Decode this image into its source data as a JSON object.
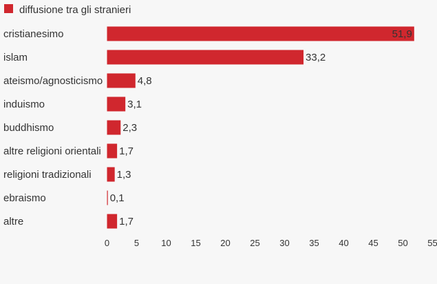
{
  "chart_data": {
    "type": "bar",
    "orientation": "horizontal",
    "categories": [
      "cristianesimo",
      "islam",
      "ateismo/agnosticismo",
      "induismo",
      "buddhismo",
      "altre religioni orientali",
      "religioni tradizionali",
      "ebraismo",
      "altre"
    ],
    "series": [
      {
        "name": "diffusione tra gli stranieri",
        "values": [
          51.9,
          33.2,
          4.8,
          3.1,
          2.3,
          1.7,
          1.3,
          0.1,
          1.7
        ],
        "value_labels": [
          "51,9",
          "33,2",
          "4,8",
          "3,1",
          "2,3",
          "1,7",
          "1,3",
          "0,1",
          "1,7"
        ],
        "color": "#d0272e"
      }
    ],
    "xlim": [
      0,
      55
    ],
    "x_ticks": [
      "0",
      "5",
      "10",
      "15",
      "20",
      "25",
      "30",
      "35",
      "40",
      "45",
      "50",
      "55"
    ],
    "grid": false,
    "legend_position": "top-left",
    "background_color": "#f7f7f7",
    "text_color": "#333333"
  }
}
